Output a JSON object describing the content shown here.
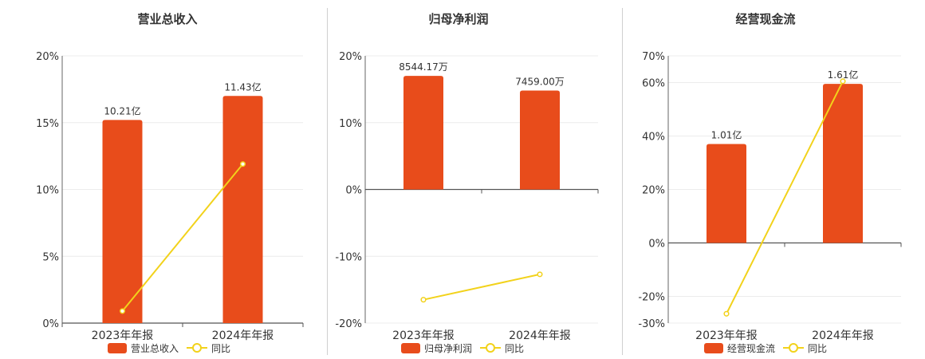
{
  "chart_data": [
    {
      "type": "bar",
      "title": "营业总收入",
      "categories": [
        "2023年年报",
        "2024年年报"
      ],
      "ylim": [
        0,
        20
      ],
      "yticks": [
        0,
        5,
        10,
        15,
        20
      ],
      "tick_suffix": "%",
      "bar_heights": [
        15.2,
        17.0
      ],
      "bar_labels": [
        "10.21亿",
        "11.43亿"
      ],
      "series": [
        {
          "name": "营业总收入",
          "type": "bar",
          "color": "#E84C1B"
        },
        {
          "name": "同比",
          "type": "line",
          "color": "#F2D21B",
          "values": [
            0.9,
            11.9
          ]
        }
      ],
      "grid": true,
      "legend": "bottom"
    },
    {
      "type": "bar",
      "title": "归母净利润",
      "categories": [
        "2023年年报",
        "2024年年报"
      ],
      "ylim": [
        -20,
        20
      ],
      "yticks": [
        -20,
        -10,
        0,
        10,
        20
      ],
      "tick_suffix": "%",
      "bar_heights": [
        17.0,
        14.8
      ],
      "bar_labels": [
        "8544.17万",
        "7459.00万"
      ],
      "series": [
        {
          "name": "归母净利润",
          "type": "bar",
          "color": "#E84C1B"
        },
        {
          "name": "同比",
          "type": "line",
          "color": "#F2D21B",
          "values": [
            -16.5,
            -12.7
          ]
        }
      ],
      "grid": true,
      "legend": "bottom"
    },
    {
      "type": "bar",
      "title": "经营现金流",
      "categories": [
        "2023年年报",
        "2024年年报"
      ],
      "ylim": [
        -30,
        70
      ],
      "yticks": [
        -30,
        -20,
        0,
        20,
        40,
        60,
        70
      ],
      "tick_suffix": "%",
      "bar_heights": [
        37.0,
        59.5
      ],
      "bar_labels": [
        "1.01亿",
        "1.61亿"
      ],
      "series": [
        {
          "name": "经营现金流",
          "type": "bar",
          "color": "#E84C1B"
        },
        {
          "name": "同比",
          "type": "line",
          "color": "#F2D21B",
          "values": [
            -26.5,
            60.5
          ]
        }
      ],
      "grid": true,
      "legend": "bottom"
    }
  ]
}
